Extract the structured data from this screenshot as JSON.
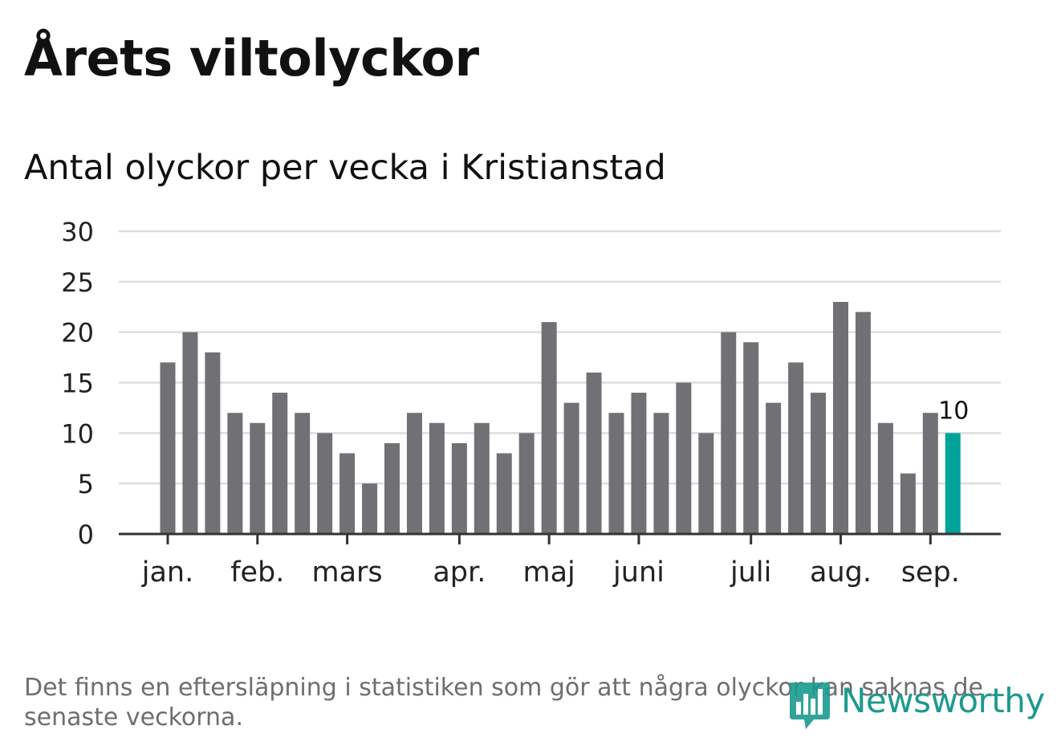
{
  "title": "Årets viltolyckor",
  "subtitle": "Antal olyckor per vecka i Kristianstad",
  "note": "Det finns en eftersläpning i statistiken som gör att några olyckor kan saknas de senaste veckorna.",
  "brand": {
    "name": "Newsworthy",
    "color": "#1b9a8e",
    "icon": "bar-chart-pin-icon"
  },
  "colors": {
    "bar": "#717075",
    "highlight": "#00a39a",
    "grid": "#dddddd",
    "axis": "#333333"
  },
  "chart_data": {
    "type": "bar",
    "title": "Antal olyckor per vecka i Kristianstad",
    "xlabel": "",
    "ylabel": "",
    "ylim": [
      0,
      30
    ],
    "yticks": [
      0,
      5,
      10,
      15,
      20,
      25,
      30
    ],
    "grid": true,
    "values": [
      17,
      20,
      18,
      12,
      11,
      14,
      12,
      10,
      8,
      5,
      9,
      12,
      11,
      9,
      11,
      8,
      10,
      21,
      13,
      16,
      12,
      14,
      12,
      15,
      10,
      20,
      19,
      13,
      17,
      14,
      23,
      22,
      11,
      6,
      12,
      10
    ],
    "highlight_index": 35,
    "highlight_label": "10",
    "month_ticks": [
      {
        "label": "jan.",
        "week": 0
      },
      {
        "label": "feb.",
        "week": 4
      },
      {
        "label": "mars",
        "week": 8
      },
      {
        "label": "apr.",
        "week": 13
      },
      {
        "label": "maj",
        "week": 17
      },
      {
        "label": "juni",
        "week": 21
      },
      {
        "label": "juli",
        "week": 26
      },
      {
        "label": "aug.",
        "week": 30
      },
      {
        "label": "sep.",
        "week": 34
      }
    ]
  }
}
